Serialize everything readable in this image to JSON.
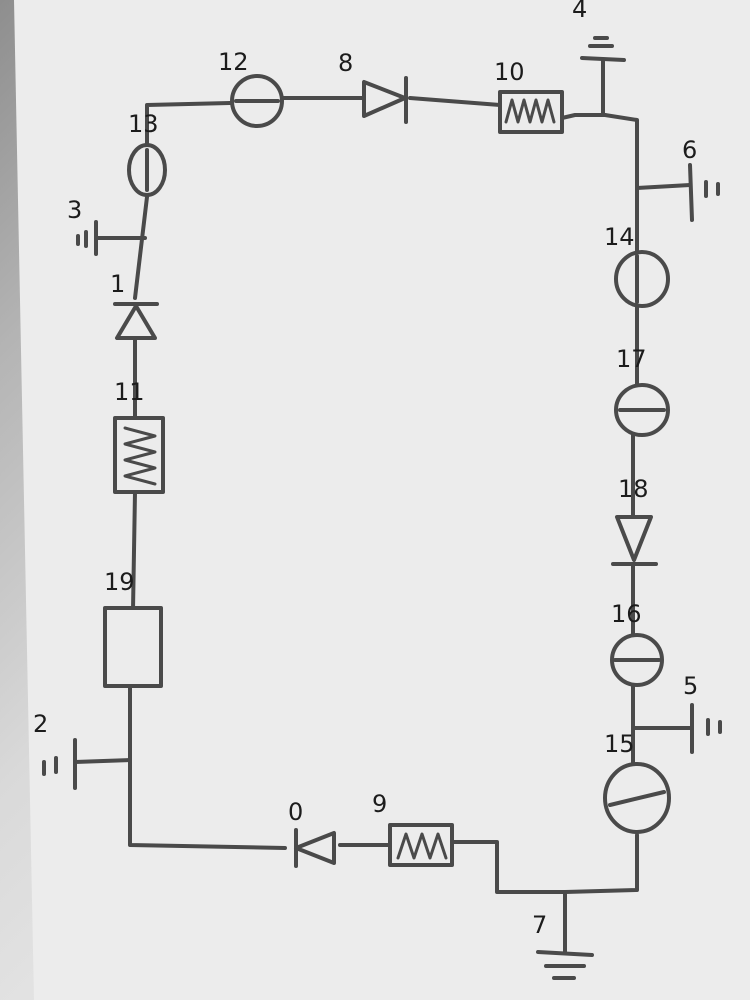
{
  "diagram": {
    "type": "circuit-schematic",
    "paper_color": "#eeeeee",
    "ink_color": "#4a4a4a",
    "components": [
      {
        "id": "0",
        "kind": "diode"
      },
      {
        "id": "1",
        "kind": "diode"
      },
      {
        "id": "2",
        "kind": "ground"
      },
      {
        "id": "3",
        "kind": "ground"
      },
      {
        "id": "4",
        "kind": "ground"
      },
      {
        "id": "5",
        "kind": "ground"
      },
      {
        "id": "6",
        "kind": "ground"
      },
      {
        "id": "7",
        "kind": "ground"
      },
      {
        "id": "8",
        "kind": "diode"
      },
      {
        "id": "9",
        "kind": "inductor"
      },
      {
        "id": "10",
        "kind": "inductor"
      },
      {
        "id": "11",
        "kind": "inductor"
      },
      {
        "id": "12",
        "kind": "current-source"
      },
      {
        "id": "13",
        "kind": "voltage-source"
      },
      {
        "id": "14",
        "kind": "current-source"
      },
      {
        "id": "15",
        "kind": "voltage-source"
      },
      {
        "id": "16",
        "kind": "voltage-source"
      },
      {
        "id": "17",
        "kind": "voltage-source"
      },
      {
        "id": "18",
        "kind": "diode"
      },
      {
        "id": "19",
        "kind": "resistor-box"
      }
    ]
  }
}
